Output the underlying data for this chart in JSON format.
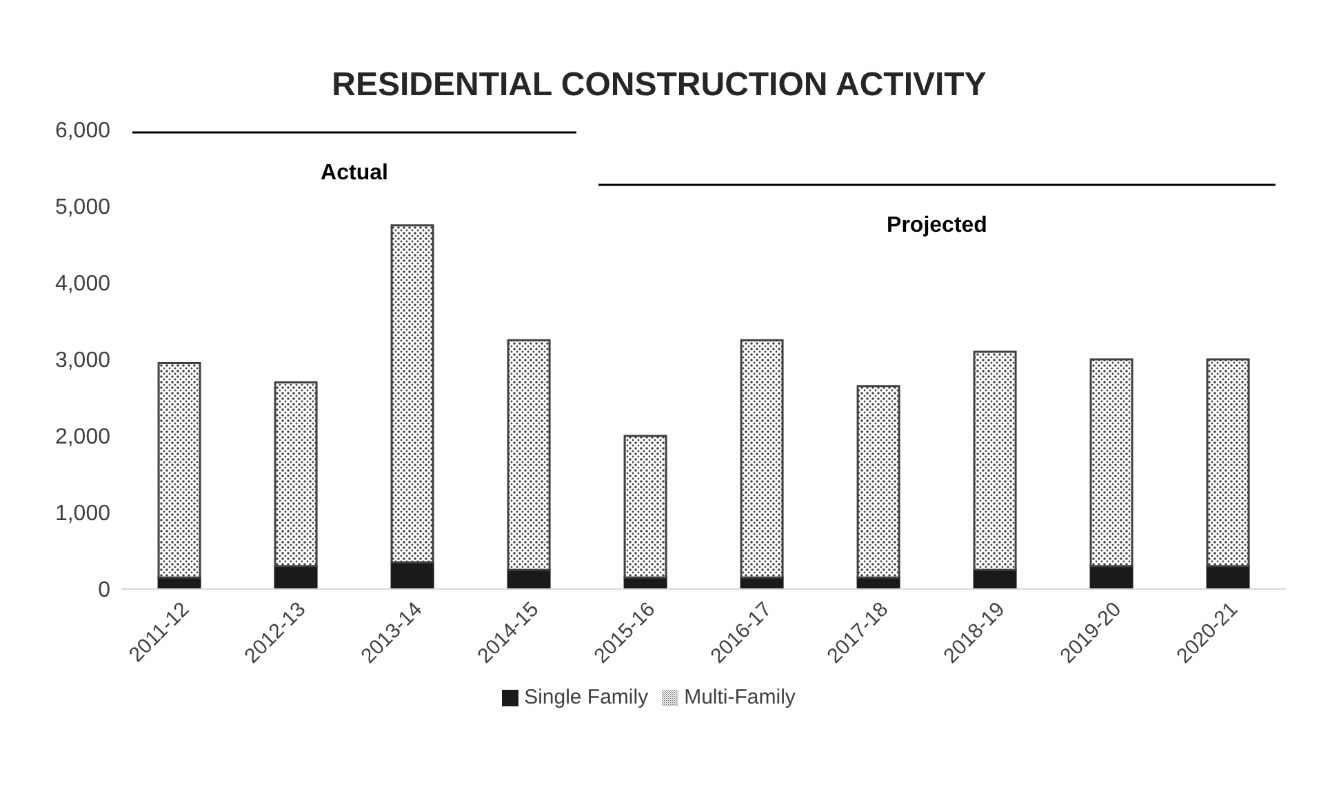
{
  "chart_data": {
    "type": "bar",
    "title": "RESIDENTIAL CONSTRUCTION ACTIVITY",
    "categories": [
      "2011-12",
      "2012-13",
      "2013-14",
      "2014-15",
      "2015-16",
      "2016-17",
      "2017-18",
      "2018-19",
      "2019-20",
      "2020-21"
    ],
    "stacked": true,
    "series": [
      {
        "name": "Single Family",
        "color": "#1a1a1a",
        "values": [
          150,
          300,
          350,
          250,
          150,
          150,
          150,
          250,
          300,
          300
        ]
      },
      {
        "name": "Multi-Family",
        "color": "#404040",
        "values": [
          2800,
          2400,
          4400,
          3000,
          1850,
          3100,
          2500,
          2850,
          2700,
          2700
        ]
      }
    ],
    "ylim": [
      0,
      6000
    ],
    "yticks": [
      {
        "value": 0,
        "label": "0"
      },
      {
        "value": 1000,
        "label": "1,000"
      },
      {
        "value": 2000,
        "label": "2,000"
      },
      {
        "value": 3000,
        "label": "3,000"
      },
      {
        "value": 4000,
        "label": "4,000"
      },
      {
        "value": 5000,
        "label": "5,000"
      },
      {
        "value": 6000,
        "label": "6,000"
      }
    ],
    "annotations": [
      "Actual",
      "Projected"
    ],
    "legend": "bottom",
    "grid": false
  }
}
